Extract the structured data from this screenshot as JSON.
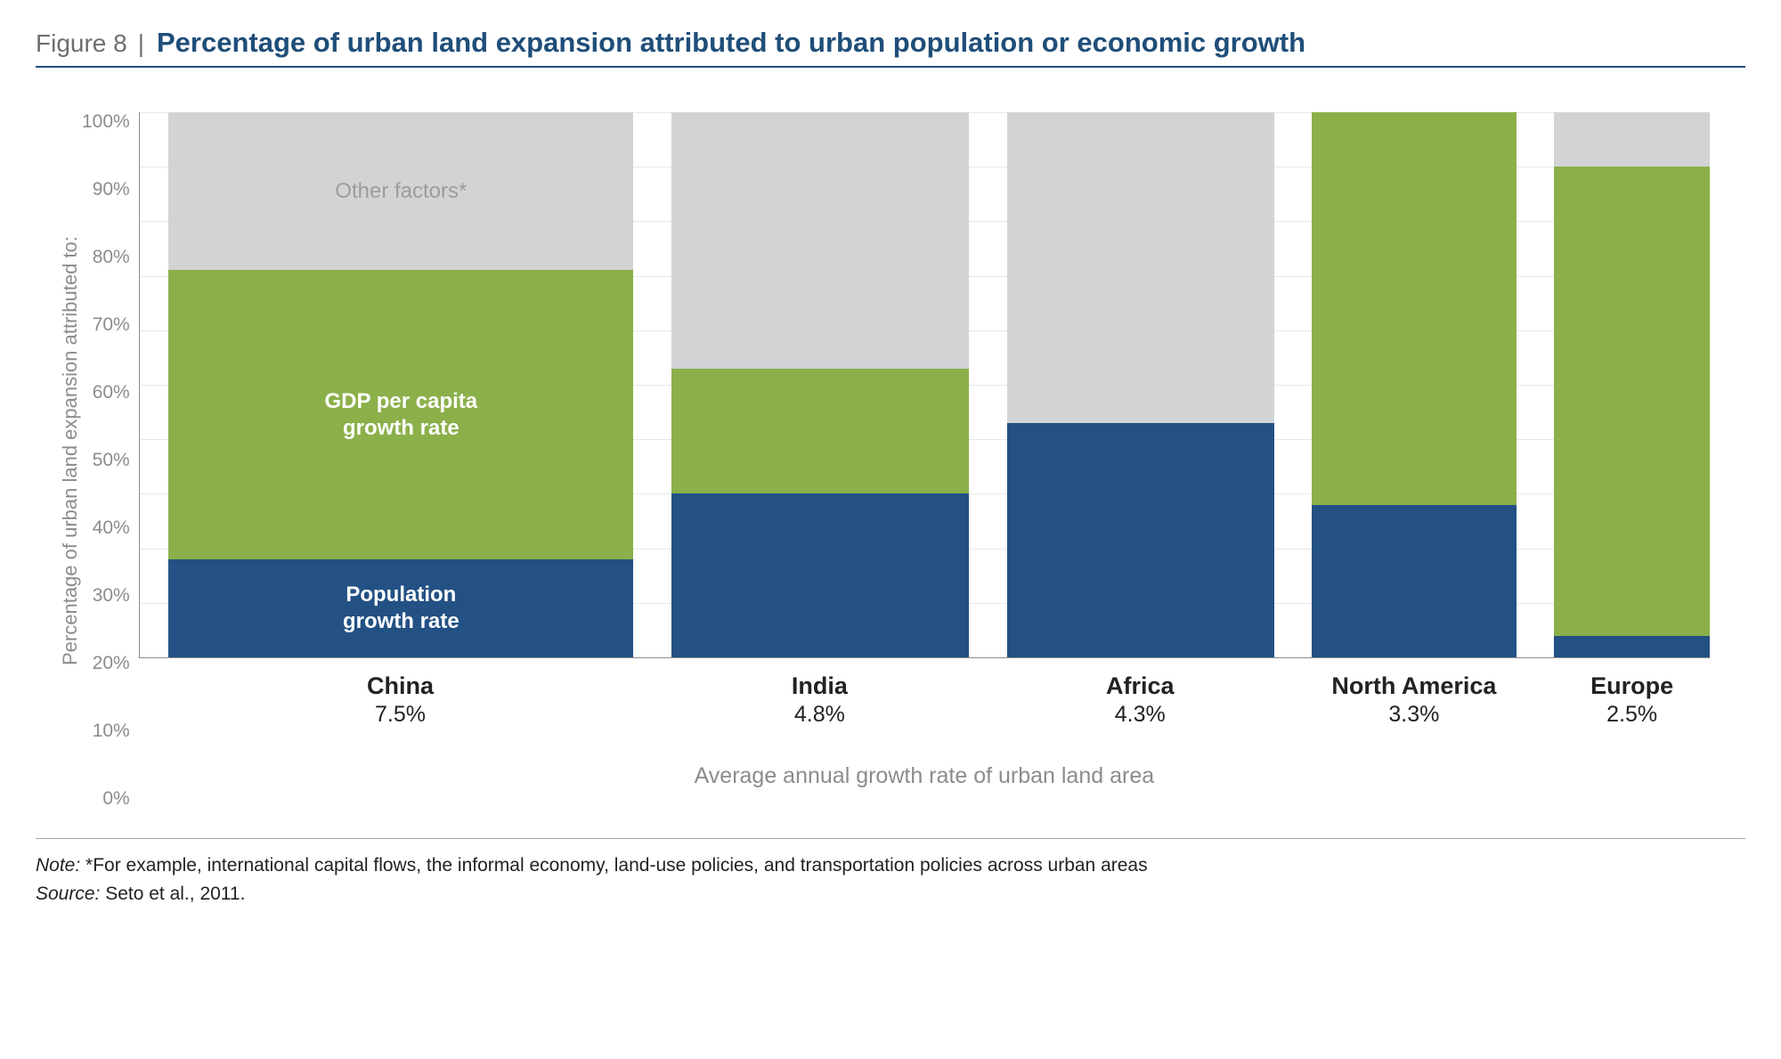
{
  "header": {
    "figure_number": "Figure 8",
    "separator": "|",
    "title": "Percentage of urban land expansion attributed to urban population or economic growth"
  },
  "chart": {
    "type": "stacked-bar",
    "ylabel": "Percentage of urban land expansion attributed to:",
    "xlabel": "Average annual growth rate of urban land area",
    "ylim": [
      0,
      100
    ],
    "ytick_step": 10,
    "yticks": [
      "100%",
      "90%",
      "80%",
      "70%",
      "60%",
      "50%",
      "40%",
      "30%",
      "20%",
      "10%",
      "0%"
    ],
    "colors": {
      "other": "#d2d3d4",
      "gdp": "#8bb04a",
      "population": "#235184",
      "grid": "#e6e7e8",
      "axis": "#8a8c8e",
      "background": "#ffffff"
    },
    "segment_labels": {
      "other": "Other factors*",
      "gdp": "GDP per capita\ngrowth rate",
      "population": "Population\ngrowth rate"
    },
    "gap_before_first_pct": 2.0,
    "gap_between_pct": 2.6,
    "gap_after_last_pct": 0,
    "bars": [
      {
        "name": "China",
        "rate": "7.5%",
        "width_pct": 32.0,
        "population": 18,
        "gdp": 53,
        "other": 29,
        "show_labels": true
      },
      {
        "name": "India",
        "rate": "4.8%",
        "width_pct": 20.5,
        "population": 30,
        "gdp": 23,
        "other": 47,
        "show_labels": false
      },
      {
        "name": "Africa",
        "rate": "4.3%",
        "width_pct": 18.4,
        "population": 43,
        "gdp": 0,
        "other": 57,
        "show_labels": false
      },
      {
        "name": "North America",
        "rate": "3.3%",
        "width_pct": 14.1,
        "population": 28,
        "gdp": 72,
        "other": 0,
        "show_labels": false
      },
      {
        "name": "Europe",
        "rate": "2.5%",
        "width_pct": 10.7,
        "population": 4,
        "gdp": 86,
        "other": 10,
        "show_labels": false
      }
    ]
  },
  "footer": {
    "note_label": "Note:",
    "note_text": " *For example, international capital flows, the informal economy, land-use policies, and transportation policies across urban areas",
    "source_label": "Source:",
    "source_text": " Seto et al., 2011."
  }
}
